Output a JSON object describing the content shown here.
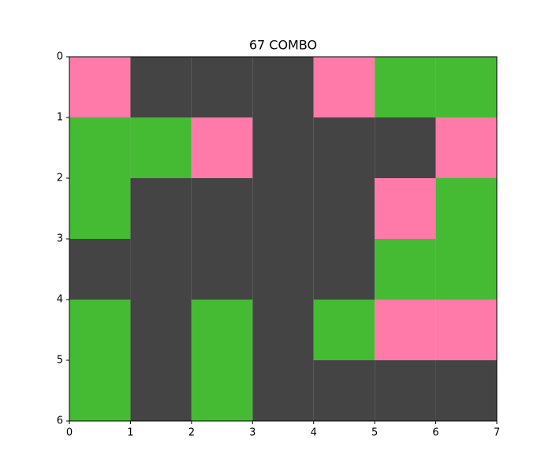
{
  "chart_data": {
    "type": "heatmap",
    "title": "67 COMBO",
    "colors": [
      "#444444",
      "#ff7aa8",
      "#44bb33"
    ],
    "values": [
      [
        1,
        0,
        0,
        0,
        1,
        2,
        2
      ],
      [
        2,
        2,
        1,
        0,
        0,
        0,
        1
      ],
      [
        2,
        0,
        0,
        0,
        0,
        1,
        2
      ],
      [
        0,
        0,
        0,
        0,
        0,
        2,
        2
      ],
      [
        2,
        0,
        2,
        0,
        2,
        1,
        1
      ],
      [
        2,
        0,
        2,
        0,
        0,
        0,
        0
      ]
    ],
    "xlim": [
      0,
      7
    ],
    "xticks": [
      0,
      1,
      2,
      3,
      4,
      5,
      6,
      7
    ],
    "ylim": [
      6,
      0
    ],
    "yticks": [
      0,
      1,
      2,
      3,
      4,
      5,
      6
    ]
  }
}
